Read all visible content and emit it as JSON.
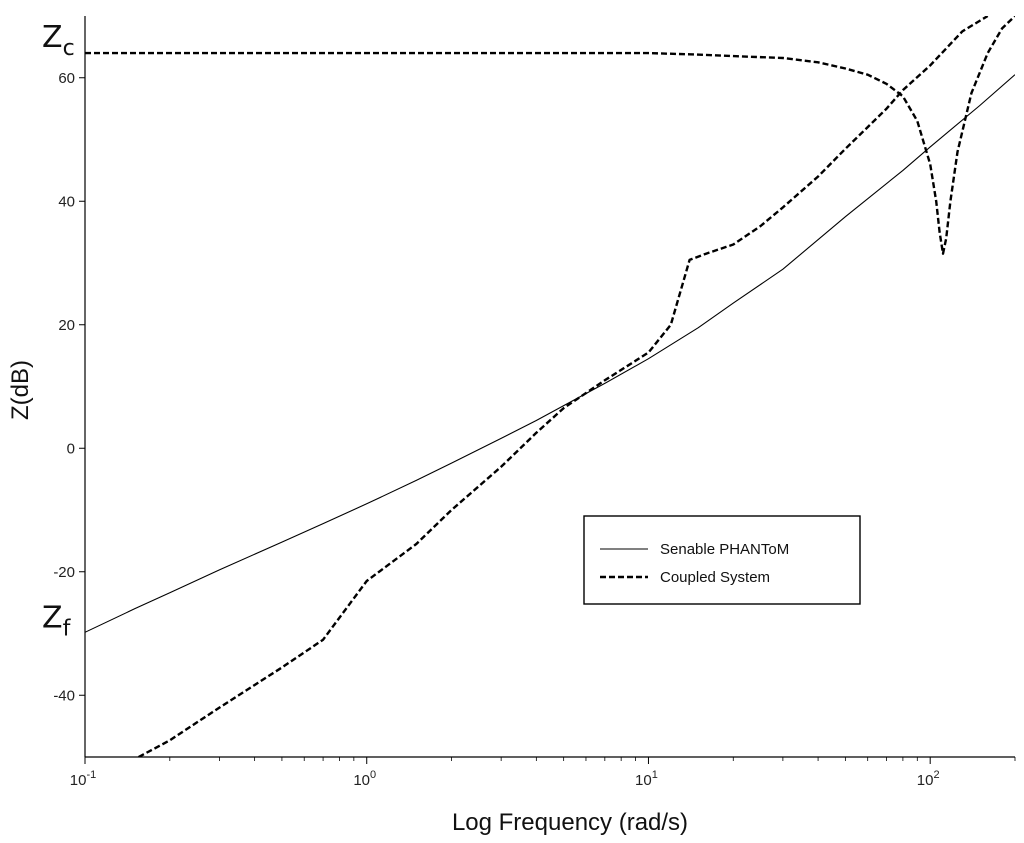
{
  "chart_data": {
    "type": "line",
    "title": "",
    "xlabel": "Log Frequency (rad/s)",
    "ylabel": "Z(dB)",
    "x_scale": "log",
    "xlim": [
      0.1,
      200
    ],
    "ylim": [
      -50,
      70
    ],
    "x_ticks": [
      {
        "value": 0.1,
        "base": "10",
        "exp": "-1"
      },
      {
        "value": 1,
        "base": "10",
        "exp": "0"
      },
      {
        "value": 10,
        "base": "10",
        "exp": "1"
      },
      {
        "value": 100,
        "base": "10",
        "exp": "2"
      }
    ],
    "y_ticks": [
      {
        "value": -40,
        "label": "-40"
      },
      {
        "value": -20,
        "label": "-20"
      },
      {
        "value": 0,
        "label": "0"
      },
      {
        "value": 20,
        "label": "20"
      },
      {
        "value": 40,
        "label": "40"
      },
      {
        "value": 60,
        "label": "60"
      }
    ],
    "grid": false,
    "legend_position": "bottom-right",
    "annotations": [
      {
        "text": "Zc",
        "main": "Z",
        "sub": "c",
        "y": 64
      },
      {
        "text": "Zf",
        "main": "Z",
        "sub": "f",
        "y": -30
      }
    ],
    "series": [
      {
        "name": "Senable PHANToM",
        "style": "solid",
        "points": [
          [
            0.1,
            -29.8
          ],
          [
            0.15,
            -26.0
          ],
          [
            0.2,
            -23.4
          ],
          [
            0.3,
            -19.7
          ],
          [
            0.5,
            -15.2
          ],
          [
            0.7,
            -12.2
          ],
          [
            1.0,
            -9.0
          ],
          [
            1.5,
            -5.2
          ],
          [
            2.0,
            -2.4
          ],
          [
            3.0,
            1.6
          ],
          [
            4.0,
            4.5
          ],
          [
            5.0,
            6.9
          ],
          [
            7.0,
            10.5
          ],
          [
            10.0,
            14.5
          ],
          [
            15.0,
            19.5
          ],
          [
            20.0,
            23.5
          ],
          [
            30.0,
            29.0
          ],
          [
            50.0,
            37.5
          ],
          [
            80.0,
            45.0
          ],
          [
            100.0,
            48.8
          ],
          [
            150.0,
            55.5
          ],
          [
            200.0,
            60.5
          ]
        ]
      },
      {
        "name": "Coupled System",
        "style": "dashed",
        "points": [
          [
            0.155,
            -50.0
          ],
          [
            0.2,
            -47.3
          ],
          [
            0.3,
            -42.0
          ],
          [
            0.5,
            -35.5
          ],
          [
            0.7,
            -31.0
          ],
          [
            1.0,
            -21.5
          ],
          [
            1.5,
            -15.5
          ],
          [
            2.0,
            -10.0
          ],
          [
            3.0,
            -3.0
          ],
          [
            4.0,
            2.5
          ],
          [
            5.0,
            6.5
          ],
          [
            7.0,
            11.0
          ],
          [
            10.0,
            15.5
          ],
          [
            12.0,
            20.0
          ],
          [
            14.0,
            30.5
          ],
          [
            16.0,
            31.5
          ],
          [
            20.0,
            33.0
          ],
          [
            25.0,
            36.0
          ],
          [
            30.0,
            39.0
          ],
          [
            40.0,
            44.0
          ],
          [
            50.0,
            48.5
          ],
          [
            60.0,
            52.0
          ],
          [
            70.0,
            55.0
          ],
          [
            80.0,
            58.0
          ],
          [
            100.0,
            62.0
          ],
          [
            130.0,
            67.5
          ],
          [
            160.0,
            70.0
          ]
        ]
      },
      {
        "name": "",
        "style": "dashed",
        "points": [
          [
            0.1,
            64.0
          ],
          [
            1.0,
            64.0
          ],
          [
            10.0,
            64.0
          ],
          [
            14.0,
            63.8
          ],
          [
            20.0,
            63.5
          ],
          [
            30.0,
            63.2
          ],
          [
            40.0,
            62.5
          ],
          [
            50.0,
            61.5
          ],
          [
            60.0,
            60.5
          ],
          [
            70.0,
            59.0
          ],
          [
            80.0,
            57.0
          ],
          [
            90.0,
            53.0
          ],
          [
            100.0,
            46.0
          ],
          [
            105.0,
            40.0
          ],
          [
            108.0,
            35.0
          ],
          [
            111.0,
            31.5
          ],
          [
            114.0,
            34.0
          ],
          [
            118.0,
            40.0
          ],
          [
            125.0,
            48.0
          ],
          [
            140.0,
            57.5
          ],
          [
            160.0,
            64.0
          ],
          [
            180.0,
            68.0
          ],
          [
            200.0,
            70.0
          ]
        ]
      }
    ]
  }
}
